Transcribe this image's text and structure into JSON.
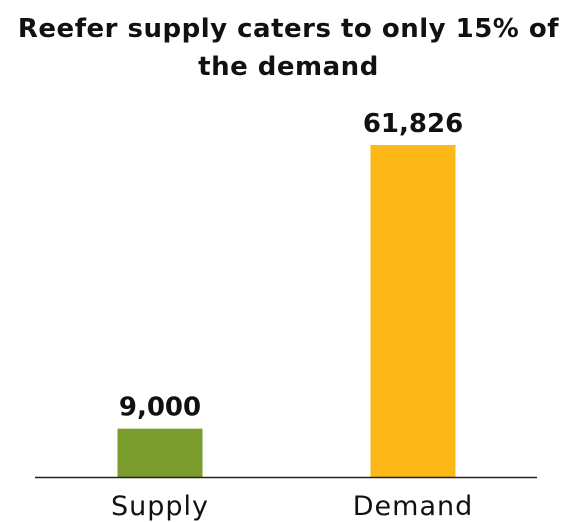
{
  "chart_data": {
    "type": "bar",
    "title": "Reefer supply caters to only 15% of the demand",
    "categories": [
      "Supply",
      "Demand"
    ],
    "values": [
      9000,
      61826
    ],
    "value_labels": [
      "9,000",
      "61,826"
    ],
    "colors": [
      "#7a9c2c",
      "#fbb817"
    ],
    "axis_color": "#222222",
    "xlabel": "",
    "ylabel": "",
    "ylim": [
      0,
      61826
    ],
    "grid": false,
    "legend": "none"
  }
}
